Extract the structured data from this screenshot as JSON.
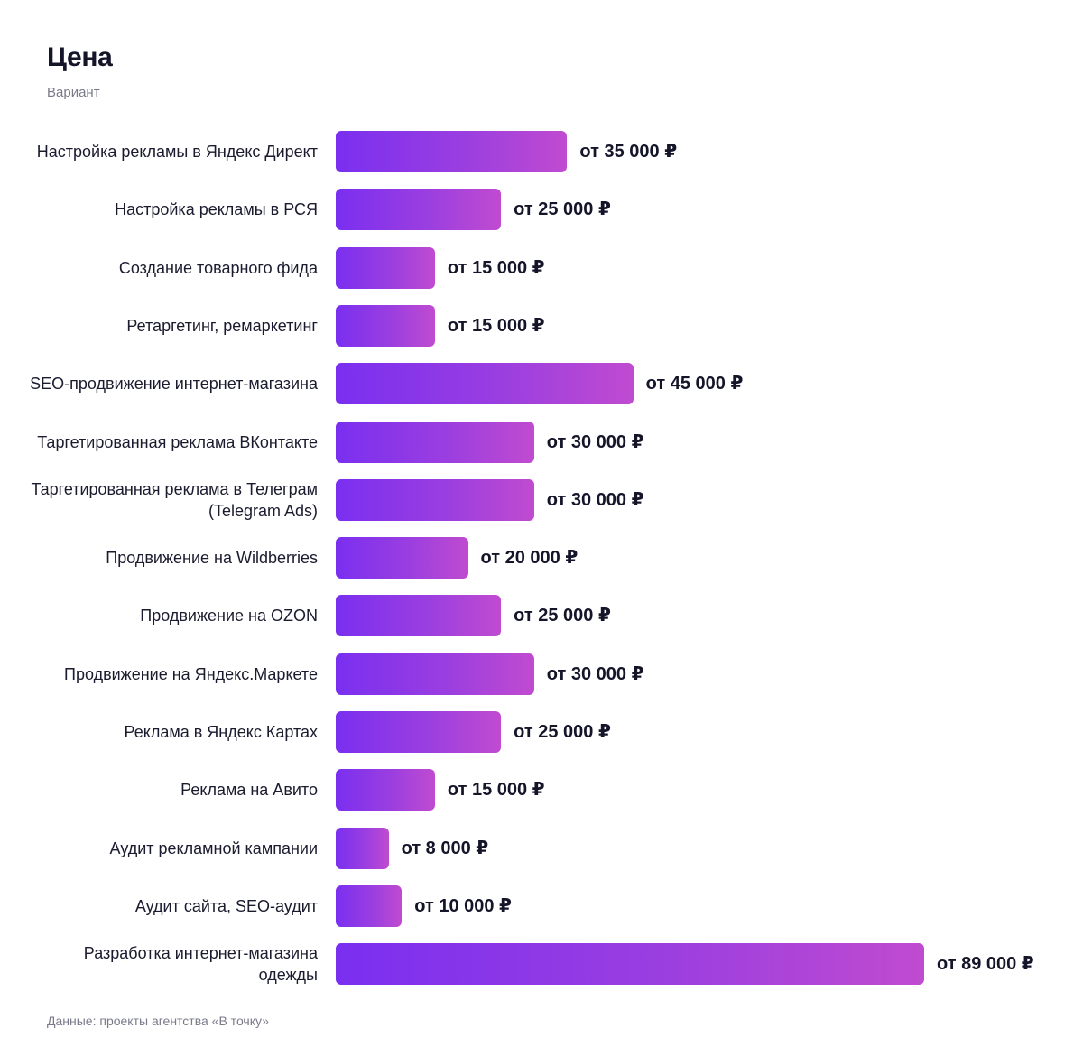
{
  "header": {
    "title": "Цена",
    "subtitle": "Вариант"
  },
  "footer": {
    "source": "Данные: проекты агентства «В точку»"
  },
  "colors": {
    "bar_start": "#7a2ff0",
    "bar_end": "#c04bd0",
    "text": "#15152a",
    "muted": "#7a7a8a"
  },
  "chart_data": {
    "type": "bar",
    "orientation": "horizontal",
    "title": "Цена",
    "subtitle": "Вариант",
    "xlabel": "",
    "ylabel": "",
    "grid": false,
    "legend": "none",
    "xlim": [
      0,
      89000
    ],
    "categories": [
      "Настройка рекламы в Яндекс Директ",
      "Настройка рекламы в РСЯ",
      "Создание товарного фида",
      "Ретаргетинг, ремаркетинг",
      "SEO-продвижение интернет-магазина",
      "Таргетированная реклама ВКонтакте",
      "Таргетированная реклама в Телеграм (Telegram Ads)",
      "Продвижение на Wildberries",
      "Продвижение на OZON",
      "Продвижение на Яндекс.Маркете",
      "Реклама в Яндекс Картах",
      "Реклама на Авито",
      "Аудит рекламной кампании",
      "Аудит сайта, SEO-аудит",
      "Разработка интернет-магазина одежды"
    ],
    "values": [
      35000,
      25000,
      15000,
      15000,
      45000,
      30000,
      30000,
      20000,
      25000,
      30000,
      25000,
      15000,
      8000,
      10000,
      89000
    ],
    "value_labels": [
      "от 35 000 ₽",
      "от 25 000 ₽",
      "от 15 000 ₽",
      "от 15 000 ₽",
      "от 45 000 ₽",
      "от 30 000 ₽",
      "от 30 000 ₽",
      "от 20 000 ₽",
      "от 25 000 ₽",
      "от 30 000 ₽",
      "от 25 000 ₽",
      "от 15 000 ₽",
      "от 8 000 ₽",
      "от 10 000 ₽",
      "от 89 000 ₽"
    ]
  }
}
